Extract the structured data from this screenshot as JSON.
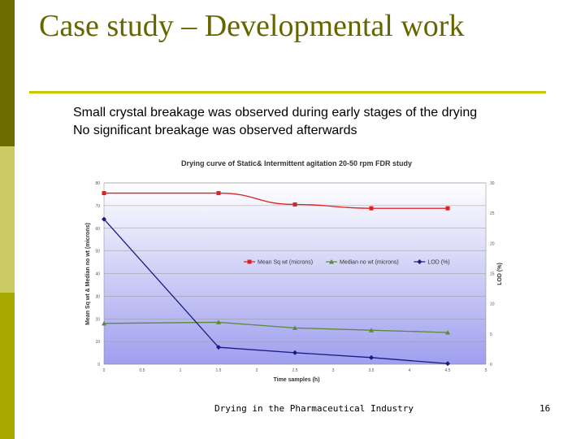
{
  "slide": {
    "title": "Case study – Developmental work",
    "bullets": [
      "Small crystal breakage was observed during early stages of the drying",
      "No significant breakage was observed afterwards"
    ],
    "footer": "Drying in the Pharmaceutical Industry",
    "page_number": "16"
  },
  "colors": {
    "sidebar_dark": "#6b6b00",
    "sidebar_light": "#cccc66",
    "sidebar_mid": "#a8a800",
    "title": "#666600",
    "rule": "#c8c800"
  },
  "chart_data": {
    "type": "line",
    "title": "Drying curve of Static& Intermittent agitation 20-50 rpm FDR study",
    "xlabel": "Time samples (h)",
    "ylabel_left": "Mean Sq wt & Median no wt (microns)",
    "ylabel_right": "LOD (%)",
    "xlim": [
      0,
      5
    ],
    "ylim_left": [
      0,
      80
    ],
    "ylim_right": [
      0,
      30
    ],
    "x_ticks": [
      "0",
      "0.5",
      "1",
      "1.5",
      "2",
      "2.5",
      "3",
      "3.5",
      "4",
      "4.5",
      "5"
    ],
    "y_ticks_left": [
      "0",
      "10",
      "20",
      "30",
      "40",
      "50",
      "60",
      "70",
      "80"
    ],
    "y_ticks_right": [
      "0",
      "5",
      "10",
      "15",
      "20",
      "25",
      "30"
    ],
    "legend_position": "center",
    "grid": true,
    "series": [
      {
        "name": "Mean Sq wt (microns)",
        "axis": "left",
        "color": "#e02020",
        "marker": "square",
        "x": [
          0,
          1.5,
          2.5,
          3.5,
          4.5
        ],
        "y": [
          75.5,
          75.5,
          70.5,
          68.8,
          68.8
        ]
      },
      {
        "name": "Median no wt (microns)",
        "axis": "left",
        "color": "#5a8a3a",
        "marker": "triangle",
        "x": [
          0,
          1.5,
          2.5,
          3.5,
          4.5
        ],
        "y": [
          18,
          18.5,
          16,
          15,
          14
        ]
      },
      {
        "name": "LOD (%)",
        "axis": "right",
        "color": "#1a1a80",
        "marker": "diamond",
        "x": [
          0,
          1.5,
          2.5,
          3.5,
          4.5
        ],
        "y": [
          24,
          2.8,
          1.9,
          1.1,
          0.1
        ]
      }
    ]
  }
}
